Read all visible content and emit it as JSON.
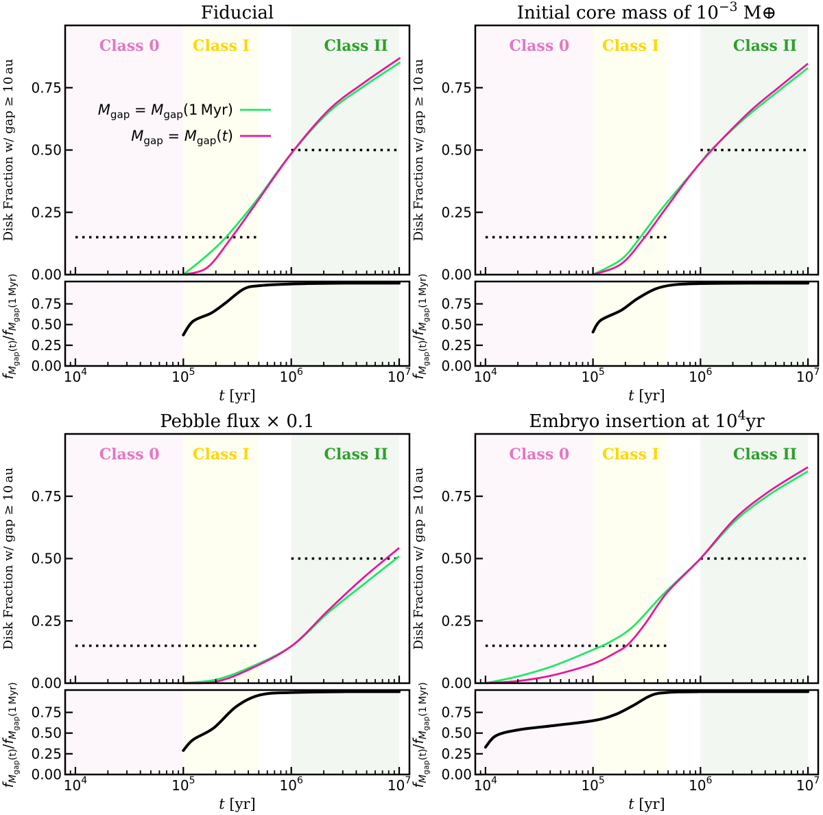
{
  "shared": {
    "ylabel_main": "Disk Fraction w/ gap ≥ 10 au",
    "ratio_ylabel_parts": [
      [
        "f",
        "i"
      ],
      [
        "M",
        "sub-i"
      ],
      [
        "gap",
        "subsub"
      ],
      [
        "(t)",
        "sub"
      ],
      [
        "/",
        ""
      ],
      [
        "f",
        "i"
      ],
      [
        "M",
        "sub-i"
      ],
      [
        "gap",
        "subsub"
      ],
      [
        "(1 Myr)",
        "sub"
      ]
    ],
    "xlabel_parts": [
      [
        "t",
        "i"
      ],
      [
        " [yr]",
        ""
      ]
    ],
    "xtick_base": "10",
    "xtick_exponents": [
      4,
      5,
      6,
      7
    ],
    "xlim_log10": [
      3.905,
      7.095
    ],
    "ylim_main": [
      0,
      1.0
    ],
    "ylim_ratio": [
      0,
      1.02
    ],
    "yticks_main": [
      "0.00",
      "0.25",
      "0.50",
      "0.75"
    ],
    "yticks_ratio": [
      "0.00",
      "0.25",
      "0.50",
      "0.75"
    ],
    "classes": [
      {
        "label": "Class 0",
        "range_yr": [
          1000.0,
          100000.0
        ],
        "color": "#e377c2",
        "bg": "#fdf6fb"
      },
      {
        "label": "Class I",
        "range_yr": [
          100000.0,
          500000.0
        ],
        "color": "#ffd700",
        "bg": "#fefef1"
      },
      {
        "label": "Class II",
        "range_yr": [
          1000000.0,
          10000000.0
        ],
        "color": "#2ca02c",
        "bg": "#f2f7f1"
      }
    ],
    "hlines": [
      {
        "y": 0.15,
        "range_yr": [
          10000.0,
          500000.0
        ]
      },
      {
        "y": 0.5,
        "range_yr": [
          1000000.0,
          10000000.0
        ]
      }
    ],
    "legend": [
      {
        "parts": [
          [
            "M",
            "i"
          ],
          [
            "gap",
            "sub"
          ],
          [
            " = ",
            ""
          ],
          [
            "M",
            "i"
          ],
          [
            "gap",
            "sub"
          ],
          [
            "(1 Myr)",
            ""
          ]
        ],
        "color": "#1ee866"
      },
      {
        "parts": [
          [
            "M",
            "i"
          ],
          [
            "gap",
            "sub"
          ],
          [
            " = ",
            ""
          ],
          [
            "M",
            "i"
          ],
          [
            "gap",
            "sub"
          ],
          [
            "(",
            ""
          ],
          [
            "t",
            "i"
          ],
          [
            ")",
            ""
          ]
        ],
        "color": "#e8179a"
      }
    ],
    "colors": {
      "fixed": "#1ee866",
      "evolving": "#e8179a",
      "ratio": "#000000"
    }
  },
  "chart_data": [
    {
      "type": "line",
      "title_parts": [
        [
          "Fiducial",
          ""
        ]
      ],
      "x_scale": "log10(t/yr)",
      "legend": "true",
      "series": [
        {
          "name": "M_gap = M_gap(1 Myr)",
          "key": "fixed",
          "x": [
            5.0,
            5.2,
            5.39,
            5.667,
            6.0,
            6.35,
            6.67,
            7.01
          ],
          "y": [
            0,
            0.07,
            0.148,
            0.292,
            0.486,
            0.653,
            0.755,
            0.852
          ]
        },
        {
          "name": "M_gap = M_gap(t)",
          "key": "evolving",
          "x": [
            5.0,
            5.22,
            5.43,
            5.667,
            6.0,
            6.35,
            6.67,
            7.01
          ],
          "y": [
            0,
            0.028,
            0.139,
            0.282,
            0.486,
            0.662,
            0.769,
            0.87
          ]
        }
      ],
      "ratio": {
        "x": [
          5.0,
          5.09,
          5.26,
          5.39,
          5.56,
          5.71,
          6.0,
          6.5,
          7.0
        ],
        "y": [
          0.375,
          0.54,
          0.64,
          0.76,
          0.93,
          0.97,
          0.99,
          1.0,
          1.0
        ]
      }
    },
    {
      "type": "line",
      "title_parts": [
        [
          "Initial core mass of 10",
          ""
        ],
        [
          "−3",
          "sup"
        ],
        [
          " M⊕",
          ""
        ]
      ],
      "x_scale": "log10(t/yr)",
      "series": [
        {
          "name": "M_gap = M_gap(1 Myr)",
          "key": "fixed",
          "x": [
            5.0,
            5.26,
            5.43,
            5.64,
            6.0,
            6.11,
            6.43,
            6.75,
            7.0
          ],
          "y": [
            0,
            0.06,
            0.144,
            0.264,
            0.449,
            0.505,
            0.634,
            0.745,
            0.829
          ]
        },
        {
          "name": "M_gap = M_gap(t)",
          "key": "evolving",
          "x": [
            5.0,
            5.26,
            5.47,
            5.69,
            6.0,
            6.43,
            6.75,
            7.0
          ],
          "y": [
            0,
            0.042,
            0.144,
            0.273,
            0.449,
            0.643,
            0.759,
            0.847
          ]
        }
      ],
      "ratio": {
        "x": [
          5.0,
          5.07,
          5.26,
          5.41,
          5.58,
          5.75,
          6.0,
          6.5,
          7.0
        ],
        "y": [
          0.41,
          0.55,
          0.67,
          0.81,
          0.93,
          0.98,
          0.995,
          1.0,
          1.0
        ]
      }
    },
    {
      "type": "line",
      "title_parts": [
        [
          "Pebble flux × 0.1",
          ""
        ]
      ],
      "x_scale": "log10(t/yr)",
      "series": [
        {
          "name": "M_gap = M_gap(1 Myr)",
          "key": "fixed",
          "x": [
            5.0,
            5.3,
            5.6,
            6.0,
            6.34,
            6.66,
            7.0
          ],
          "y": [
            0,
            0.014,
            0.06,
            0.148,
            0.282,
            0.393,
            0.509
          ]
        },
        {
          "name": "M_gap = M_gap(t)",
          "key": "evolving",
          "x": [
            5.0,
            5.3,
            5.6,
            6.0,
            6.34,
            6.66,
            7.0
          ],
          "y": [
            0,
            0.006,
            0.053,
            0.148,
            0.291,
            0.42,
            0.543
          ]
        }
      ],
      "ratio": {
        "x": [
          5.0,
          5.09,
          5.28,
          5.49,
          5.71,
          6.0,
          6.5,
          7.0
        ],
        "y": [
          0.29,
          0.42,
          0.56,
          0.82,
          0.96,
          0.99,
          1.0,
          1.0
        ]
      }
    },
    {
      "type": "line",
      "title_parts": [
        [
          "Embryo insertion at 10",
          ""
        ],
        [
          "4",
          "sup"
        ],
        [
          "yr",
          ""
        ]
      ],
      "x_scale": "log10(t/yr)",
      "series": [
        {
          "name": "M_gap = M_gap(1 Myr)",
          "key": "fixed",
          "x": [
            4.0,
            4.31,
            4.63,
            5.0,
            5.16,
            5.37,
            5.65,
            6.0,
            6.32,
            6.64,
            7.0
          ],
          "y": [
            0,
            0.028,
            0.069,
            0.134,
            0.166,
            0.226,
            0.355,
            0.5,
            0.65,
            0.756,
            0.85
          ]
        },
        {
          "name": "M_gap = M_gap(t)",
          "key": "evolving",
          "x": [
            4.0,
            4.31,
            4.63,
            5.0,
            5.2,
            5.33,
            5.48,
            5.69,
            6.0,
            6.32,
            6.64,
            7.0
          ],
          "y": [
            0,
            0.009,
            0.032,
            0.078,
            0.12,
            0.157,
            0.235,
            0.364,
            0.5,
            0.66,
            0.77,
            0.867
          ]
        }
      ],
      "ratio": {
        "x": [
          4.0,
          4.1,
          4.31,
          4.63,
          5.0,
          5.2,
          5.37,
          5.54,
          5.69,
          6.0,
          7.0
        ],
        "y": [
          0.33,
          0.47,
          0.54,
          0.59,
          0.65,
          0.72,
          0.83,
          0.955,
          0.99,
          1.0,
          1.0
        ]
      }
    }
  ]
}
